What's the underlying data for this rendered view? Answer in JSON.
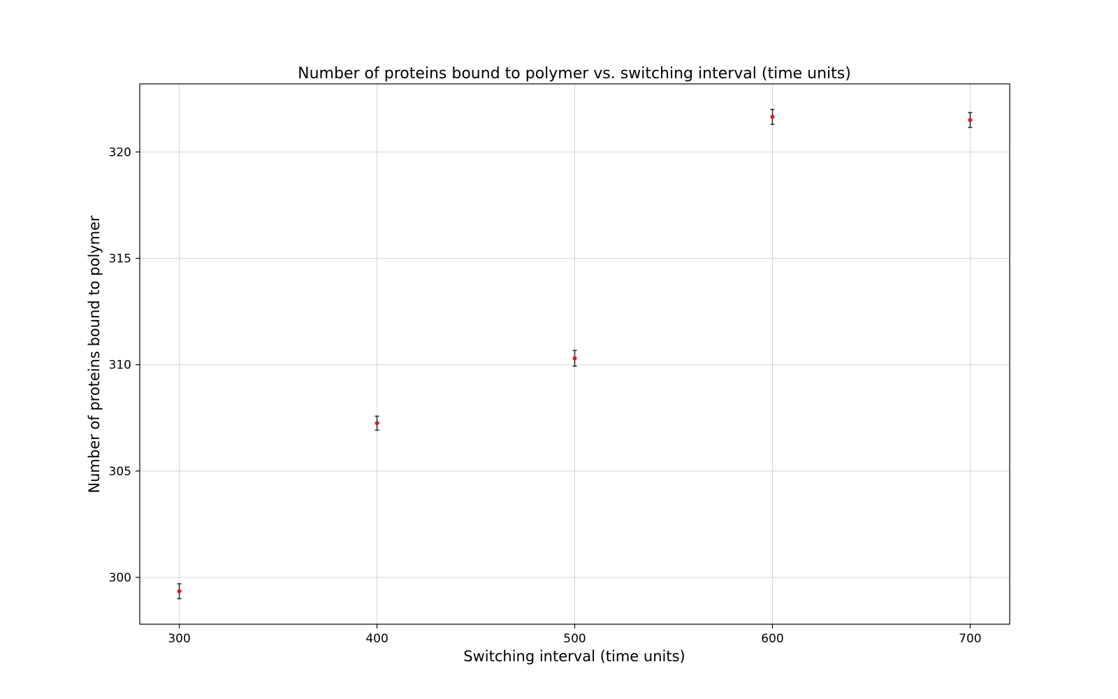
{
  "chart_data": {
    "type": "scatter",
    "title": "Number of proteins bound to polymer vs. switching interval (time units)",
    "xlabel": "Switching interval (time units)",
    "ylabel": "Number of proteins bound to polymer",
    "xlim": [
      280,
      720
    ],
    "ylim": [
      297.8,
      323.2
    ],
    "xticks": [
      300,
      400,
      500,
      600,
      700
    ],
    "yticks": [
      300,
      305,
      310,
      315,
      320
    ],
    "grid": true,
    "legend": "none",
    "colors": {
      "marker": "#e3161b",
      "errorbar": "#222222"
    },
    "series": [
      {
        "x": [
          300,
          400,
          500,
          600,
          700
        ],
        "y": [
          299.35,
          307.25,
          310.3,
          321.65,
          321.5
        ],
        "yerr": [
          0.35,
          0.33,
          0.37,
          0.35,
          0.35
        ]
      }
    ]
  }
}
